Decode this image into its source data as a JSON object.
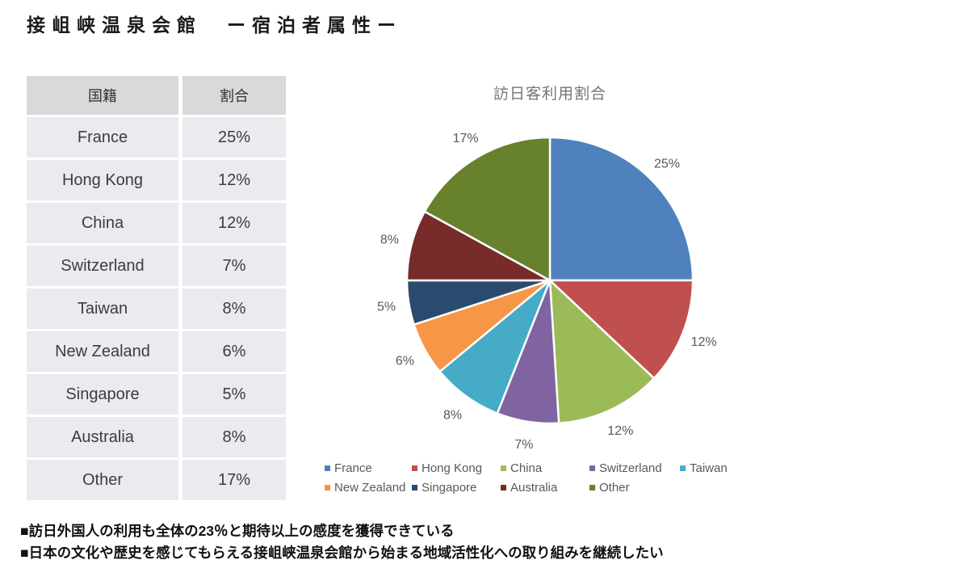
{
  "page_title": "接岨峡温泉会館　ー宿泊者属性ー",
  "table": {
    "headers": [
      "国籍",
      "割合"
    ],
    "rows": [
      [
        "France",
        "25%"
      ],
      [
        "Hong Kong",
        "12%"
      ],
      [
        "China",
        "12%"
      ],
      [
        "Switzerland",
        "7%"
      ],
      [
        "Taiwan",
        "8%"
      ],
      [
        "New Zealand",
        "6%"
      ],
      [
        "Singapore",
        "5%"
      ],
      [
        "Australia",
        "8%"
      ],
      [
        "Other",
        "17%"
      ]
    ]
  },
  "chart_data": {
    "type": "pie",
    "title": "訪日客利用割合",
    "categories": [
      "France",
      "Hong Kong",
      "China",
      "Switzerland",
      "Taiwan",
      "New Zealand",
      "Singapore",
      "Australia",
      "Other"
    ],
    "values": [
      25,
      12,
      12,
      7,
      8,
      6,
      5,
      8,
      17
    ],
    "data_labels": [
      "25%",
      "12%",
      "12%",
      "7%",
      "8%",
      "6%",
      "5%",
      "8%",
      "17%"
    ],
    "colors": [
      "#4F81BD",
      "#C0504D",
      "#9BBB59",
      "#8064A2",
      "#45ABC6",
      "#F79646",
      "#2A4B6E",
      "#772C2A",
      "#67812D"
    ],
    "start_angle_deg": 0,
    "direction": "clockwise",
    "slice_border_color": "#FFFFFF",
    "label_color": "#595959",
    "title_color": "#767676",
    "legend_position": "bottom"
  },
  "notes": [
    "■訪日外国人の利用も全体の23％と期待以上の感度を獲得できている",
    "■日本の文化や歴史を感じてもらえる接岨峡温泉会館から始まる地域活性化への取り組みを継続したい"
  ]
}
